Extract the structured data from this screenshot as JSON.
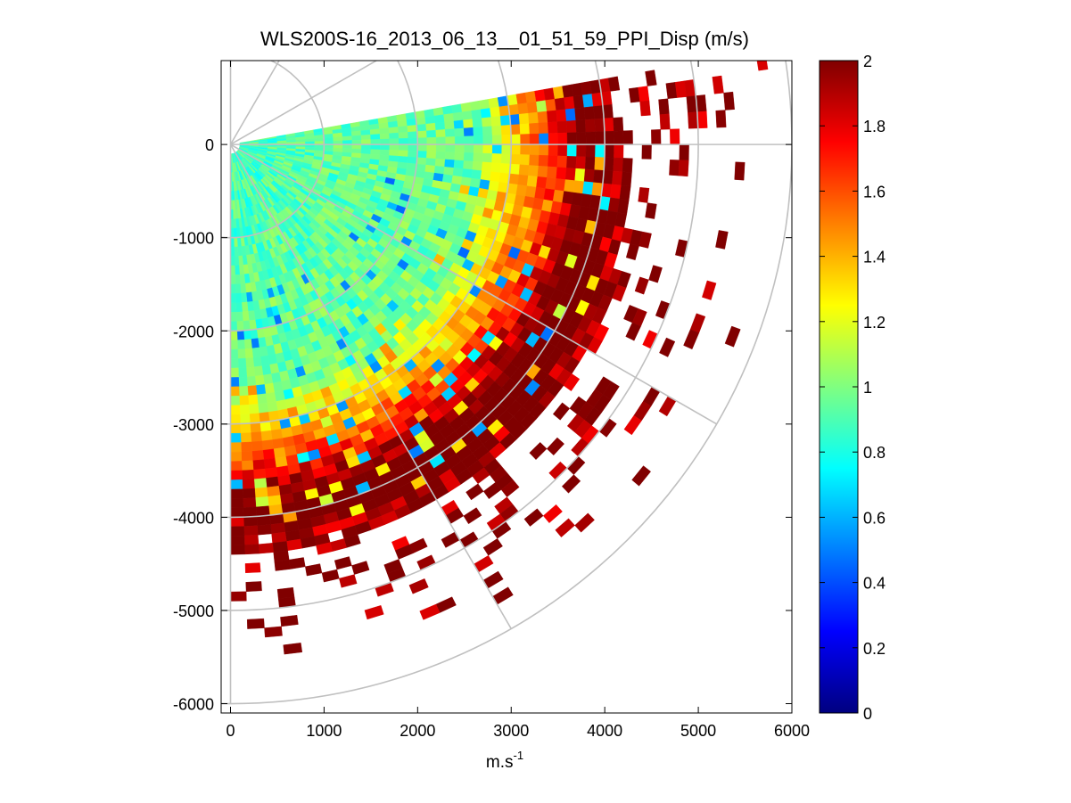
{
  "chart_data": {
    "type": "heatmap",
    "title": "WLS200S-16_2013_06_13__01_51_59_PPI_Disp (m/s)",
    "xlabel": "m.s",
    "xlabel_superscript": "-1",
    "ylabel": "",
    "xlim": [
      -100,
      6000
    ],
    "ylim": [
      -6100,
      900
    ],
    "x_ticks": [
      0,
      1000,
      2000,
      3000,
      4000,
      5000,
      6000
    ],
    "x_tick_labels": [
      "0",
      "1000",
      "2000",
      "3000",
      "4000",
      "5000",
      "6000"
    ],
    "y_ticks": [
      0,
      -1000,
      -2000,
      -3000,
      -4000,
      -5000,
      -6000
    ],
    "y_tick_labels": [
      "0",
      "-1000",
      "-2000",
      "-3000",
      "-4000",
      "-5000",
      "-6000"
    ],
    "polar_grid": {
      "origin": [
        0,
        0
      ],
      "range_rings": [
        1000,
        2000,
        3000,
        4000,
        5000,
        6000
      ],
      "spoke_angles_deg": [
        90,
        60,
        30,
        0,
        -30,
        -60,
        -90
      ]
    },
    "sector": {
      "azimuth_from_deg": 10,
      "azimuth_to_deg": -90,
      "range_min": 100,
      "range_max": 5800,
      "range_gate": 100,
      "beam_width_deg": 2
    },
    "colorbar": {
      "colormap": "jet",
      "clim": [
        0,
        2
      ],
      "ticks": [
        0,
        0.2,
        0.4,
        0.6,
        0.8,
        1,
        1.2,
        1.4,
        1.6,
        1.8,
        2
      ],
      "tick_labels": [
        "0",
        "0.2",
        "0.4",
        "0.6",
        "0.8",
        "1",
        "1.2",
        "1.4",
        "1.6",
        "1.8",
        "2"
      ]
    },
    "grid": "polar",
    "legend": "none"
  }
}
